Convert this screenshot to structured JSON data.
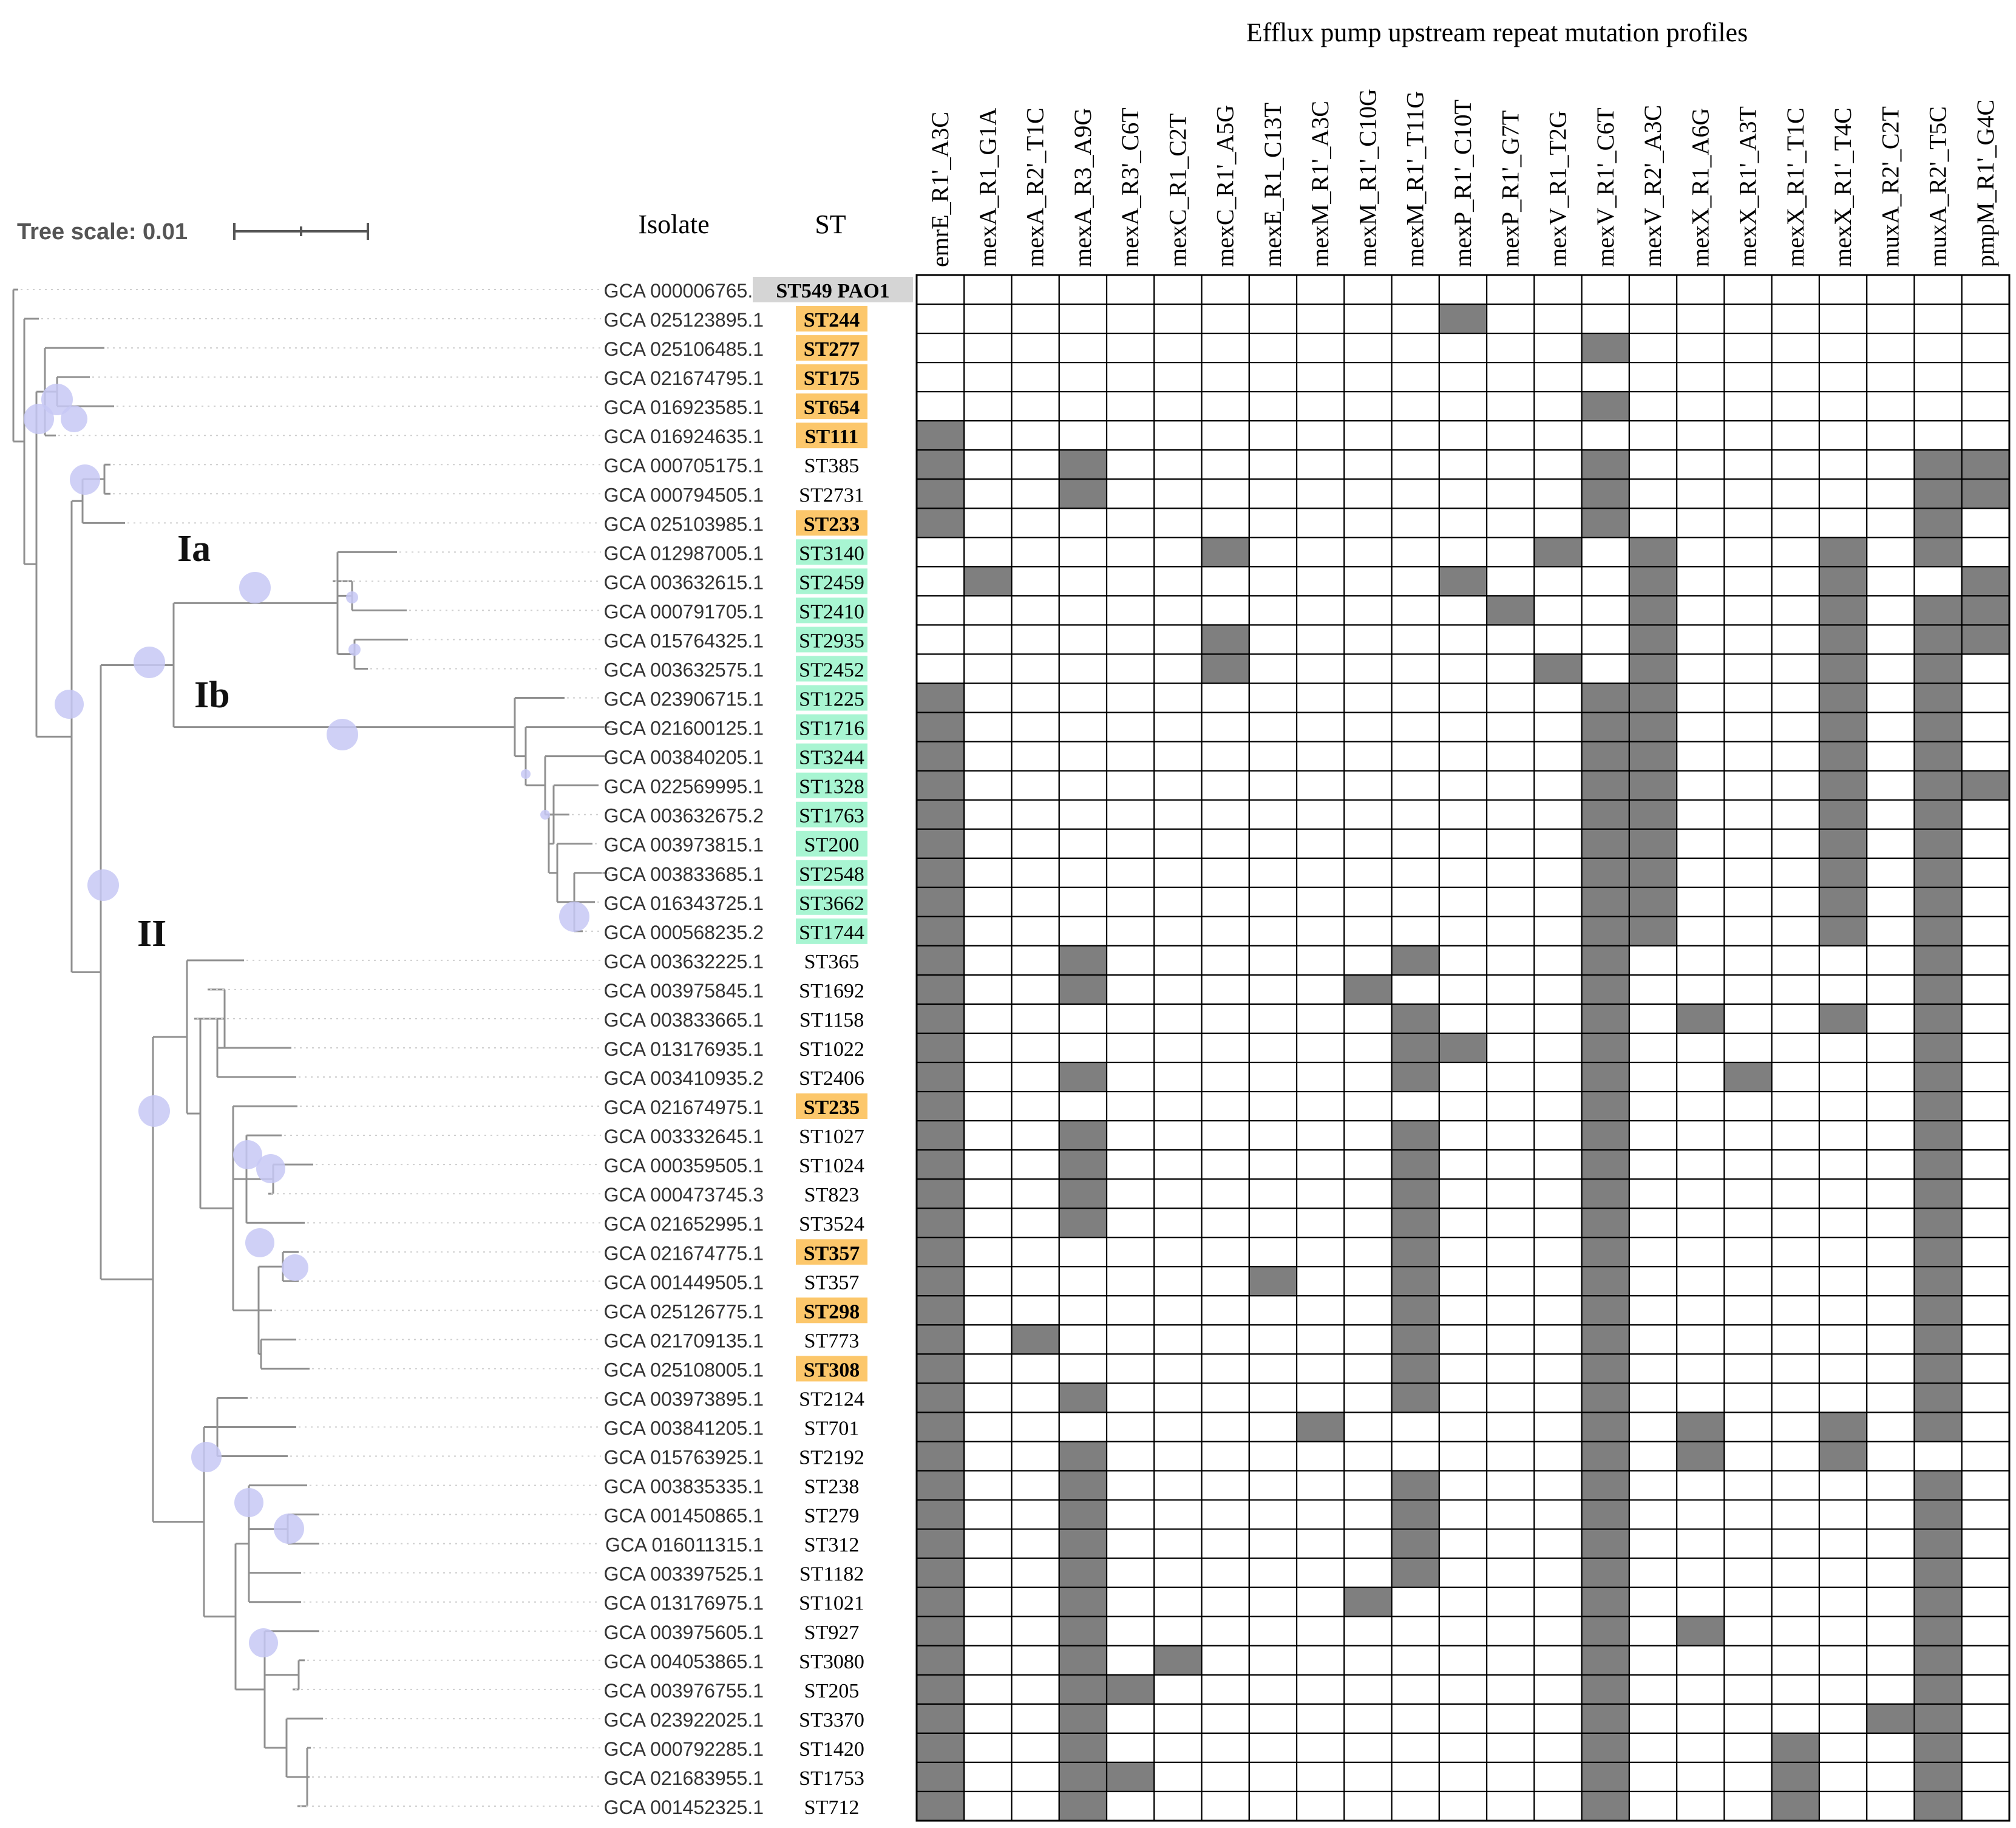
{
  "figure": {
    "heatmap_title": "Efflux pump upstream repeat mutation profiles",
    "col_header_isolate": "Isolate",
    "col_header_st": "ST",
    "tree_scale_label": "Tree scale: 0.01",
    "clade_labels": [
      "Ia",
      "Ib",
      "II"
    ],
    "colors": {
      "cell_on": "#7f7f7f",
      "cell_off": "#ffffff",
      "grid": "#000000",
      "tree": "#909090",
      "node": "#c7c8f5",
      "st_highlight_orange": "#fcc76b",
      "st_highlight_green": "#a8f5d2",
      "st_highlight_grey": "#d5d5d5"
    }
  },
  "chart_data": {
    "type": "heatmap",
    "title": "Efflux pump upstream repeat mutation profiles",
    "columns": [
      "emrE_R1'_A3C",
      "mexA_R1_G1A",
      "mexA_R2'_T1C",
      "mexA_R3_A9G",
      "mexA_R3'_C6T",
      "mexC_R1_C2T",
      "mexC_R1'_A5G",
      "mexE_R1_C13T",
      "mexM_R1'_A3C",
      "mexM_R1'_C10G",
      "mexM_R1'_T11G",
      "mexP_R1'_C10T",
      "mexP_R1'_G7T",
      "mexV_R1_T2G",
      "mexV_R1'_C6T",
      "mexV_R2'_A3C",
      "mexX_R1_A6G",
      "mexX_R1'_A3T",
      "mexX_R1'_T1C",
      "mexX_R1'_T4C",
      "muxA_R2'_C2T",
      "muxA_R2'_T5C",
      "pmpM_R1'_G4C"
    ],
    "rows": [
      {
        "isolate": "GCA 000006765.1",
        "st": "ST549 PAO1",
        "hl": "grey",
        "cells": []
      },
      {
        "isolate": "GCA 025123895.1",
        "st": "ST244",
        "hl": "orange",
        "cells": [
          11
        ]
      },
      {
        "isolate": "GCA 025106485.1",
        "st": "ST277",
        "hl": "orange",
        "cells": [
          14
        ]
      },
      {
        "isolate": "GCA 021674795.1",
        "st": "ST175",
        "hl": "orange",
        "cells": []
      },
      {
        "isolate": "GCA 016923585.1",
        "st": "ST654",
        "hl": "orange",
        "cells": [
          14
        ]
      },
      {
        "isolate": "GCA 016924635.1",
        "st": "ST111",
        "hl": "orange",
        "cells": [
          0
        ]
      },
      {
        "isolate": "GCA 000705175.1",
        "st": "ST385",
        "hl": "",
        "cells": [
          0,
          3,
          14,
          21,
          22
        ]
      },
      {
        "isolate": "GCA 000794505.1",
        "st": "ST2731",
        "hl": "",
        "cells": [
          0,
          3,
          14,
          21,
          22
        ]
      },
      {
        "isolate": "GCA 025103985.1",
        "st": "ST233",
        "hl": "orange",
        "cells": [
          0,
          14,
          21
        ]
      },
      {
        "isolate": "GCA 012987005.1",
        "st": "ST3140",
        "hl": "green",
        "cells": [
          6,
          13,
          15,
          19,
          21
        ]
      },
      {
        "isolate": "GCA 003632615.1",
        "st": "ST2459",
        "hl": "green",
        "cells": [
          1,
          11,
          15,
          19,
          22
        ]
      },
      {
        "isolate": "GCA 000791705.1",
        "st": "ST2410",
        "hl": "green",
        "cells": [
          12,
          15,
          19,
          21,
          22
        ]
      },
      {
        "isolate": "GCA 015764325.1",
        "st": "ST2935",
        "hl": "green",
        "cells": [
          6,
          15,
          19,
          21,
          22
        ]
      },
      {
        "isolate": "GCA 003632575.1",
        "st": "ST2452",
        "hl": "green",
        "cells": [
          6,
          13,
          15,
          19,
          21
        ]
      },
      {
        "isolate": "GCA 023906715.1",
        "st": "ST1225",
        "hl": "green",
        "cells": [
          0,
          14,
          15,
          19,
          21
        ]
      },
      {
        "isolate": "GCA 021600125.1",
        "st": "ST1716",
        "hl": "green",
        "cells": [
          0,
          14,
          15,
          19,
          21
        ]
      },
      {
        "isolate": "GCA 003840205.1",
        "st": "ST3244",
        "hl": "green",
        "cells": [
          0,
          14,
          15,
          19,
          21
        ]
      },
      {
        "isolate": "GCA 022569995.1",
        "st": "ST1328",
        "hl": "green",
        "cells": [
          0,
          14,
          15,
          19,
          21,
          22
        ]
      },
      {
        "isolate": "GCA 003632675.2",
        "st": "ST1763",
        "hl": "green",
        "cells": [
          0,
          14,
          15,
          19,
          21
        ]
      },
      {
        "isolate": "GCA 003973815.1",
        "st": "ST200",
        "hl": "green",
        "cells": [
          0,
          14,
          15,
          19,
          21
        ]
      },
      {
        "isolate": "GCA 003833685.1",
        "st": "ST2548",
        "hl": "green",
        "cells": [
          0,
          14,
          15,
          19,
          21
        ]
      },
      {
        "isolate": "GCA 016343725.1",
        "st": "ST3662",
        "hl": "green",
        "cells": [
          0,
          14,
          15,
          19,
          21
        ]
      },
      {
        "isolate": "GCA 000568235.2",
        "st": "ST1744",
        "hl": "green",
        "cells": [
          0,
          14,
          15,
          19,
          21
        ]
      },
      {
        "isolate": "GCA 003632225.1",
        "st": "ST365",
        "hl": "",
        "cells": [
          0,
          3,
          10,
          14,
          21
        ]
      },
      {
        "isolate": "GCA 003975845.1",
        "st": "ST1692",
        "hl": "",
        "cells": [
          0,
          3,
          9,
          14,
          21
        ]
      },
      {
        "isolate": "GCA 003833665.1",
        "st": "ST1158",
        "hl": "",
        "cells": [
          0,
          10,
          14,
          16,
          19,
          21
        ]
      },
      {
        "isolate": "GCA 013176935.1",
        "st": "ST1022",
        "hl": "",
        "cells": [
          0,
          10,
          11,
          14,
          21
        ]
      },
      {
        "isolate": "GCA 003410935.2",
        "st": "ST2406",
        "hl": "",
        "cells": [
          0,
          3,
          10,
          14,
          17,
          21
        ]
      },
      {
        "isolate": "GCA 021674975.1",
        "st": "ST235",
        "hl": "orange",
        "cells": [
          0,
          14,
          21
        ]
      },
      {
        "isolate": "GCA 003332645.1",
        "st": "ST1027",
        "hl": "",
        "cells": [
          0,
          3,
          10,
          14,
          21
        ]
      },
      {
        "isolate": "GCA 000359505.1",
        "st": "ST1024",
        "hl": "",
        "cells": [
          0,
          3,
          10,
          14,
          21
        ]
      },
      {
        "isolate": "GCA 000473745.3",
        "st": "ST823",
        "hl": "",
        "cells": [
          0,
          3,
          10,
          14,
          21
        ]
      },
      {
        "isolate": "GCA 021652995.1",
        "st": "ST3524",
        "hl": "",
        "cells": [
          0,
          3,
          10,
          14,
          21
        ]
      },
      {
        "isolate": "GCA 021674775.1",
        "st": "ST357",
        "hl": "orange",
        "cells": [
          0,
          10,
          14,
          21
        ]
      },
      {
        "isolate": "GCA 001449505.1",
        "st": "ST357",
        "hl": "",
        "cells": [
          0,
          7,
          10,
          14,
          21
        ]
      },
      {
        "isolate": "GCA 025126775.1",
        "st": "ST298",
        "hl": "orange",
        "cells": [
          0,
          10,
          14,
          21
        ]
      },
      {
        "isolate": "GCA 021709135.1",
        "st": "ST773",
        "hl": "",
        "cells": [
          0,
          2,
          10,
          14,
          21
        ]
      },
      {
        "isolate": "GCA 025108005.1",
        "st": "ST308",
        "hl": "orange",
        "cells": [
          0,
          10,
          14,
          21
        ]
      },
      {
        "isolate": "GCA 003973895.1",
        "st": "ST2124",
        "hl": "",
        "cells": [
          0,
          3,
          10,
          14,
          21
        ]
      },
      {
        "isolate": "GCA 003841205.1",
        "st": "ST701",
        "hl": "",
        "cells": [
          0,
          8,
          14,
          16,
          19,
          21
        ]
      },
      {
        "isolate": "GCA 015763925.1",
        "st": "ST2192",
        "hl": "",
        "cells": [
          0,
          3,
          14,
          16,
          19
        ]
      },
      {
        "isolate": "GCA 003835335.1",
        "st": "ST238",
        "hl": "",
        "cells": [
          0,
          3,
          10,
          14,
          21
        ]
      },
      {
        "isolate": "GCA 001450865.1",
        "st": "ST279",
        "hl": "",
        "cells": [
          0,
          3,
          10,
          14,
          21
        ]
      },
      {
        "isolate": "GCA 016011315.1",
        "st": "ST312",
        "hl": "",
        "cells": [
          0,
          3,
          10,
          14,
          21
        ]
      },
      {
        "isolate": "GCA 003397525.1",
        "st": "ST1182",
        "hl": "",
        "cells": [
          0,
          3,
          10,
          14,
          21
        ]
      },
      {
        "isolate": "GCA 013176975.1",
        "st": "ST1021",
        "hl": "",
        "cells": [
          0,
          3,
          9,
          14,
          21
        ]
      },
      {
        "isolate": "GCA 003975605.1",
        "st": "ST927",
        "hl": "",
        "cells": [
          0,
          3,
          14,
          16,
          21
        ]
      },
      {
        "isolate": "GCA 004053865.1",
        "st": "ST3080",
        "hl": "",
        "cells": [
          0,
          3,
          5,
          14,
          21
        ]
      },
      {
        "isolate": "GCA 003976755.1",
        "st": "ST205",
        "hl": "",
        "cells": [
          0,
          3,
          4,
          14,
          21
        ]
      },
      {
        "isolate": "GCA 023922025.1",
        "st": "ST3370",
        "hl": "",
        "cells": [
          0,
          3,
          14,
          20,
          21
        ]
      },
      {
        "isolate": "GCA 000792285.1",
        "st": "ST1420",
        "hl": "",
        "cells": [
          0,
          3,
          14,
          18,
          21
        ]
      },
      {
        "isolate": "GCA 021683955.1",
        "st": "ST1753",
        "hl": "",
        "cells": [
          0,
          3,
          4,
          14,
          18,
          21
        ]
      },
      {
        "isolate": "GCA 001452325.1",
        "st": "ST712",
        "hl": "",
        "cells": [
          0,
          3,
          14,
          18,
          21
        ]
      }
    ]
  }
}
